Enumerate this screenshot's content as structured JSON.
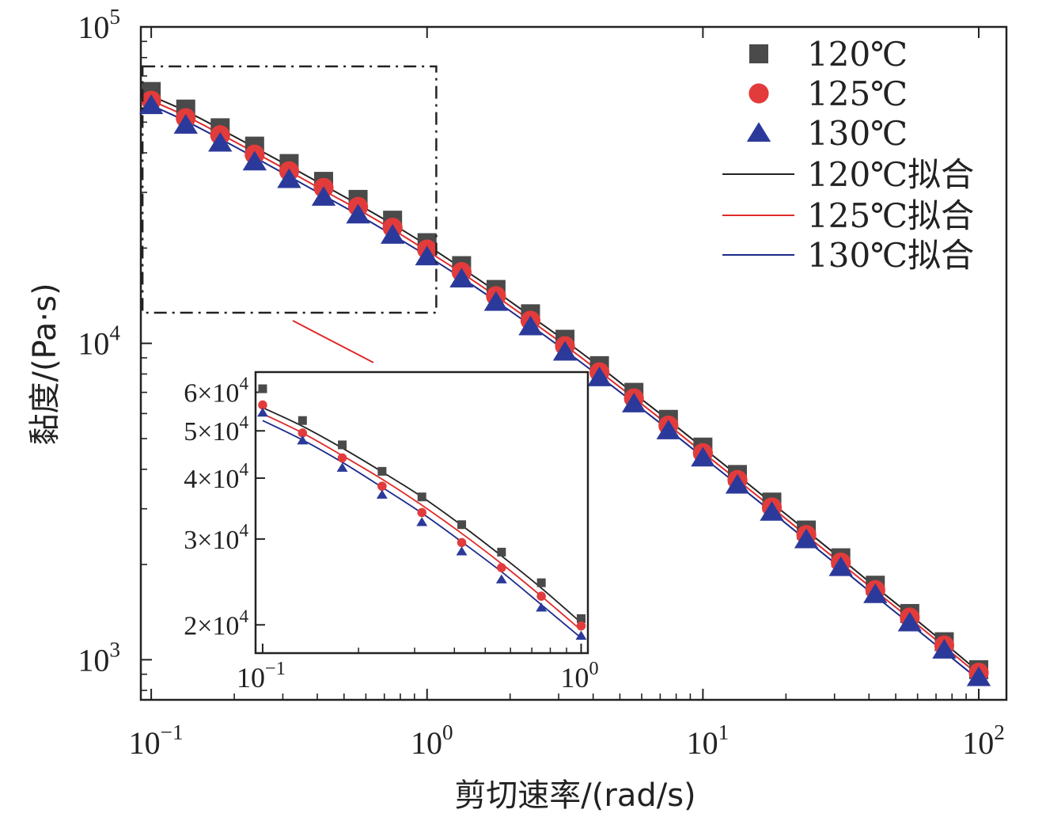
{
  "chart_data": {
    "type": "scatter",
    "xscale": "log",
    "yscale": "log",
    "xlabel": "剪切速率/(rad/s)",
    "ylabel": "黏度/(Pa·s)",
    "xlim": [
      0.0917,
      126
    ],
    "ylim": [
      747,
      100000
    ],
    "xticks": [
      {
        "base": "10",
        "exp": "−1",
        "value": 0.1
      },
      {
        "base": "10",
        "exp": "0",
        "value": 1
      },
      {
        "base": "10",
        "exp": "1",
        "value": 10
      },
      {
        "base": "10",
        "exp": "2",
        "value": 100
      }
    ],
    "yticks": [
      {
        "base": "10",
        "exp": "3",
        "value": 1000
      },
      {
        "base": "10",
        "exp": "4",
        "value": 10000
      },
      {
        "base": "10",
        "exp": "5",
        "value": 100000
      }
    ],
    "x": [
      0.1,
      0.1334,
      0.1778,
      0.2371,
      0.3162,
      0.4217,
      0.5623,
      0.7499,
      1.0,
      1.334,
      1.778,
      2.371,
      3.162,
      4.217,
      5.623,
      7.499,
      10.0,
      13.34,
      17.78,
      23.71,
      31.62,
      42.17,
      56.23,
      74.99,
      100.0
    ],
    "series": [
      {
        "name": "120℃",
        "marker": "square",
        "color": "#4a4a4a",
        "values": [
          62500,
          55000,
          48000,
          42000,
          37000,
          32500,
          28500,
          24500,
          20800,
          17600,
          14800,
          12400,
          10300,
          8500,
          7000,
          5750,
          4700,
          3850,
          3150,
          2570,
          2100,
          1720,
          1400,
          1140,
          930
        ]
      },
      {
        "name": "125℃",
        "marker": "circle",
        "color": "#e23b3b",
        "values": [
          58500,
          51500,
          45500,
          39500,
          35000,
          31000,
          27000,
          23200,
          19800,
          16800,
          14100,
          11800,
          9800,
          8100,
          6700,
          5500,
          4500,
          3700,
          3030,
          2480,
          2030,
          1660,
          1360,
          1110,
          910
        ]
      },
      {
        "name": "130℃",
        "marker": "triangle",
        "color": "#2b3a9a",
        "values": [
          56500,
          49000,
          43000,
          37500,
          33000,
          29000,
          25500,
          22000,
          18800,
          16000,
          13500,
          11300,
          9400,
          7800,
          6450,
          5300,
          4350,
          3570,
          2930,
          2400,
          1960,
          1610,
          1310,
          1075,
          880
        ]
      }
    ],
    "fits": [
      {
        "name": "120℃拟合",
        "color": "#222222",
        "values": [
          60500,
          54200,
          47600,
          41600,
          36300,
          31600,
          27500,
          23800,
          20400,
          17300,
          14600,
          12200,
          10200,
          8450,
          6950,
          5720,
          4680,
          3830,
          3130,
          2560,
          2090,
          1700,
          1390,
          1130,
          915
        ]
      },
      {
        "name": "125℃拟合",
        "color": "#e02a2a",
        "values": [
          58500,
          52300,
          45900,
          40100,
          35000,
          30400,
          26500,
          22900,
          19600,
          16700,
          14100,
          11800,
          9850,
          8150,
          6720,
          5520,
          4520,
          3700,
          3030,
          2470,
          2020,
          1650,
          1350,
          1100,
          895
        ]
      },
      {
        "name": "130℃拟合",
        "color": "#1c2a8a",
        "values": [
          56500,
          50400,
          44300,
          38700,
          33700,
          29300,
          25500,
          22000,
          18900,
          16100,
          13600,
          11400,
          9500,
          7870,
          6490,
          5340,
          4370,
          3580,
          2930,
          2390,
          1950,
          1590,
          1300,
          1060,
          865
        ]
      }
    ],
    "legend": {
      "placement": "top-right",
      "entries": [
        {
          "label": "120℃",
          "kind": "square",
          "color": "#4a4a4a"
        },
        {
          "label": "125℃",
          "kind": "circle",
          "color": "#e23b3b"
        },
        {
          "label": "130℃",
          "kind": "triangle",
          "color": "#2b3a9a"
        },
        {
          "label": "120℃拟合",
          "kind": "line",
          "color": "#222222"
        },
        {
          "label": "125℃拟合",
          "kind": "line",
          "color": "#e02a2a"
        },
        {
          "label": "130℃拟合",
          "kind": "line",
          "color": "#1c2a8a"
        }
      ]
    },
    "zoom_box": {
      "xrange": [
        0.093,
        1.08
      ],
      "yrange": [
        12500,
        75000
      ]
    },
    "inset": {
      "xscale": "log",
      "yscale": "log",
      "xlim": [
        0.095,
        1.05
      ],
      "ylim": [
        17500,
        66000
      ],
      "xticks": [
        {
          "base": "10",
          "exp": "−1",
          "value": 0.1
        },
        {
          "base": "10",
          "exp": "0",
          "value": 1
        }
      ],
      "yticks": [
        {
          "coef": "2×10",
          "exp": "4",
          "value": 20000
        },
        {
          "coef": "3×10",
          "exp": "4",
          "value": 30000
        },
        {
          "coef": "4×10",
          "exp": "4",
          "value": 40000
        },
        {
          "coef": "5×10",
          "exp": "4",
          "value": 50000
        },
        {
          "coef": "6×10",
          "exp": "4",
          "value": 60000
        }
      ],
      "x": [
        0.1,
        0.1334,
        0.1778,
        0.2371,
        0.3162,
        0.4217,
        0.5623,
        0.7499,
        1.0
      ],
      "series": [
        {
          "name": "120℃",
          "marker": "square",
          "color": "#4a4a4a",
          "values": [
            61000,
            52500,
            46800,
            41300,
            36600,
            32100,
            28200,
            24400,
            20600
          ]
        },
        {
          "name": "125℃",
          "marker": "circle",
          "color": "#e23b3b",
          "values": [
            56500,
            49500,
            44000,
            38500,
            34000,
            29500,
            26200,
            22900,
            19900
          ]
        },
        {
          "name": "130℃",
          "marker": "triangle",
          "color": "#2b3a9a",
          "values": [
            54500,
            47800,
            42000,
            37000,
            32500,
            28300,
            24800,
            21700,
            19000
          ]
        }
      ],
      "fits": [
        {
          "name": "120℃拟合",
          "color": "#222222",
          "values": [
            55800,
            51100,
            46100,
            41200,
            36600,
            32000,
            27700,
            23800,
            20200
          ]
        },
        {
          "name": "125℃拟合",
          "color": "#e02a2a",
          "values": [
            54200,
            49500,
            44500,
            39800,
            35200,
            30800,
            26700,
            22900,
            19500
          ]
        },
        {
          "name": "130℃拟合",
          "color": "#1c2a8a",
          "values": [
            52500,
            47900,
            43100,
            38300,
            33900,
            29600,
            25700,
            22000,
            18800
          ]
        }
      ]
    }
  }
}
